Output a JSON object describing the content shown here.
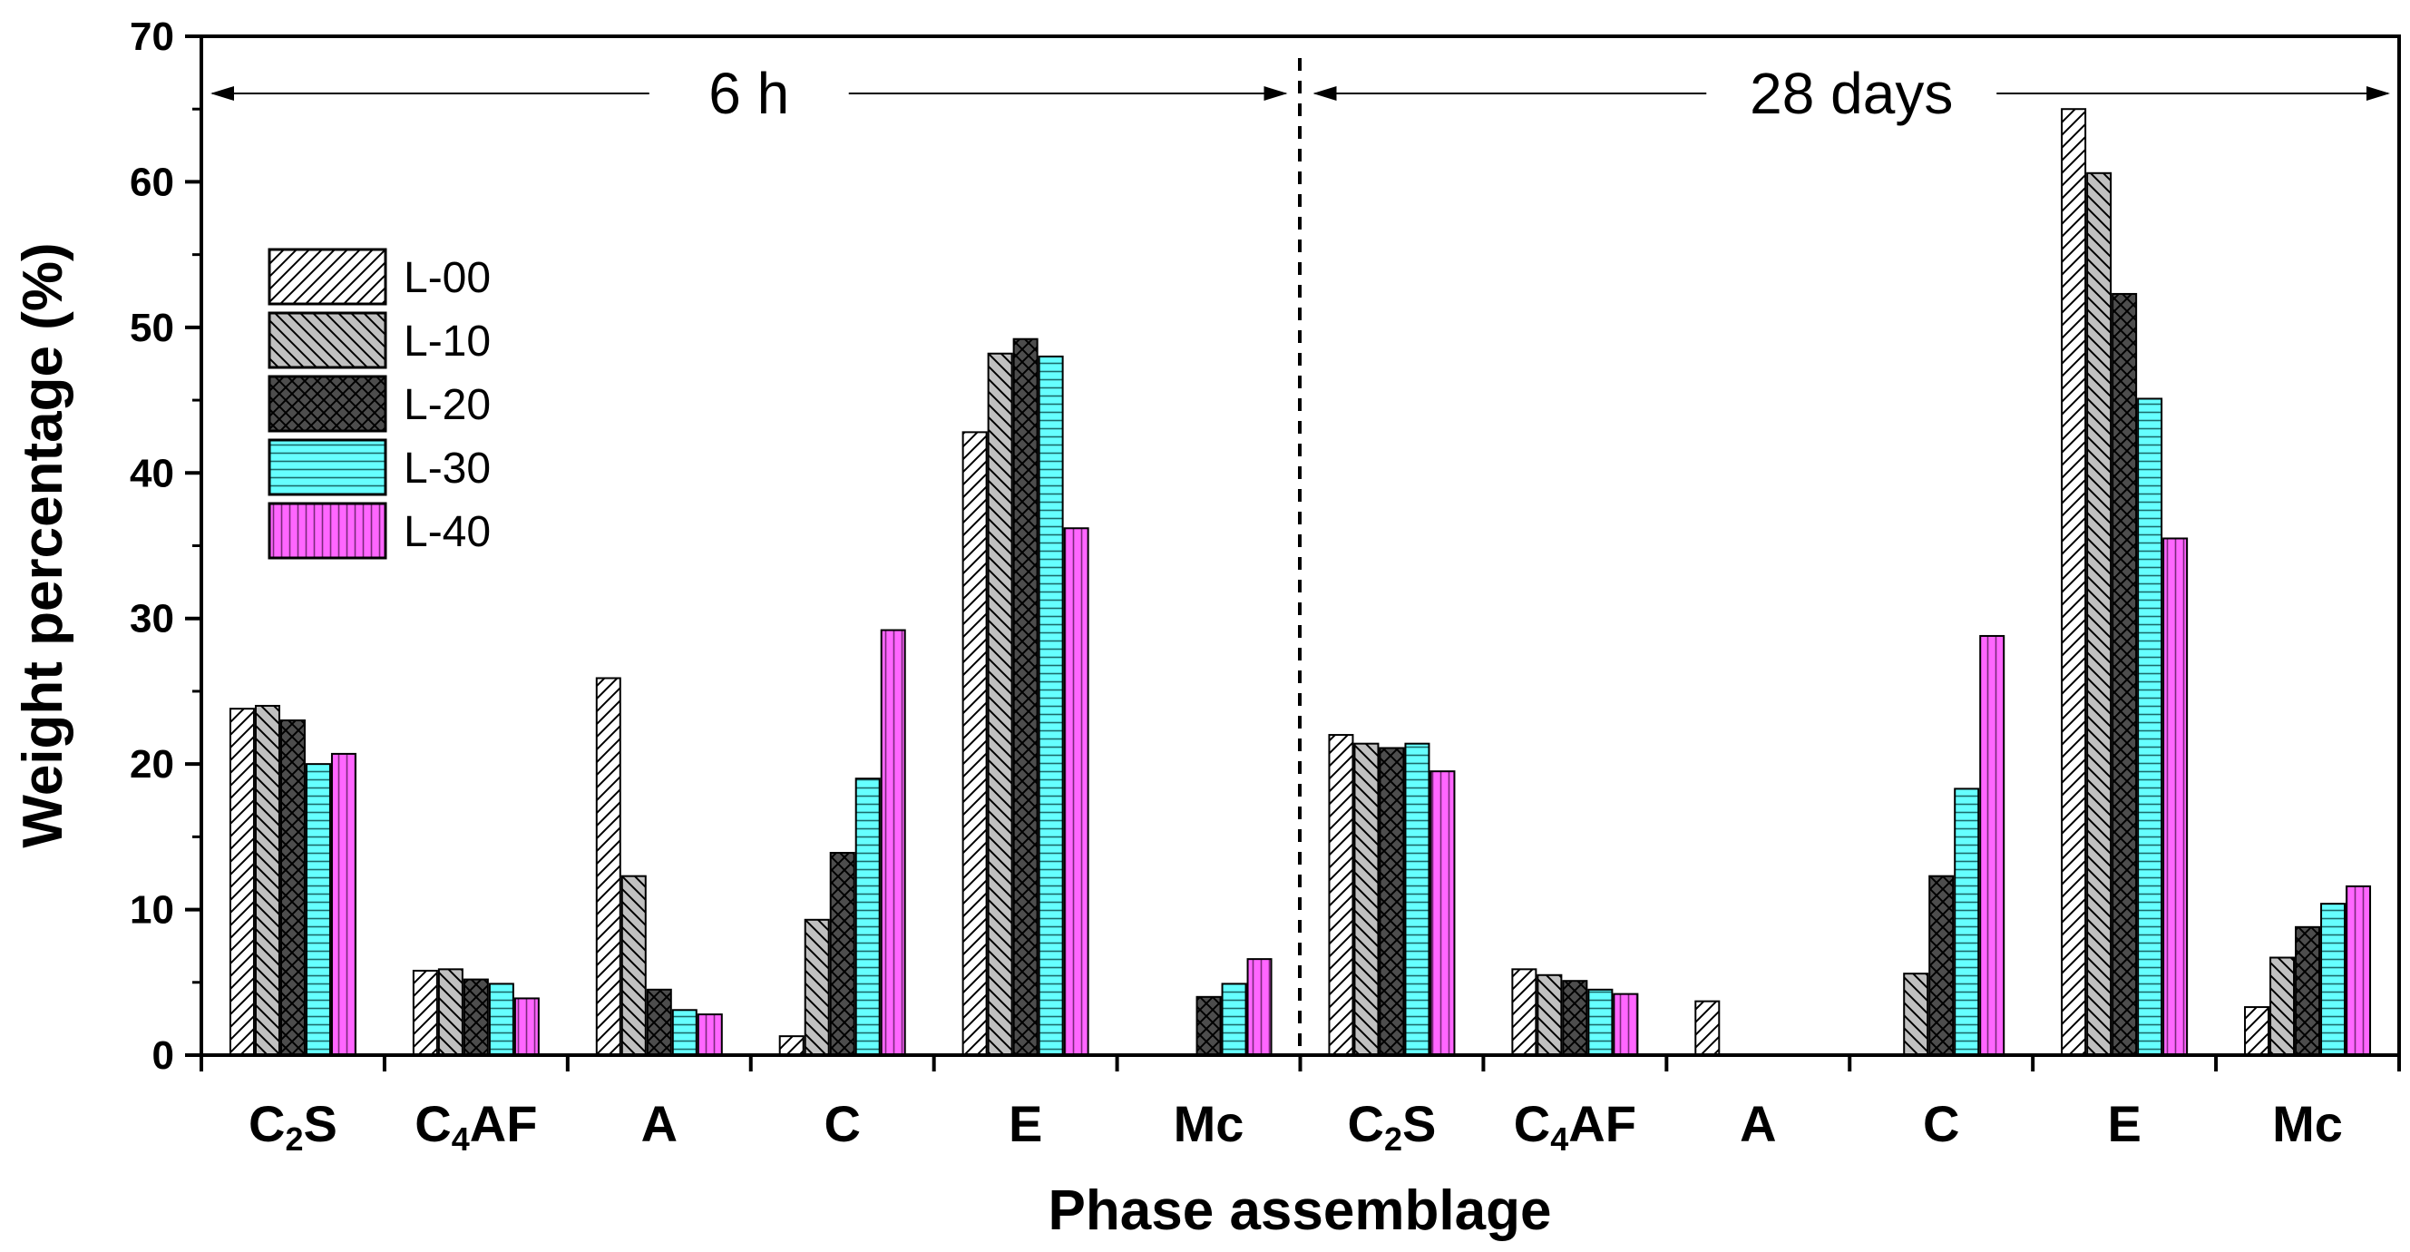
{
  "chart_data": {
    "type": "bar",
    "title": "",
    "xlabel": "Phase assemblage",
    "ylabel": "Weight percentage (%)",
    "ylim": [
      0,
      70
    ],
    "yticks": [
      "0",
      "10",
      "20",
      "30",
      "40",
      "50",
      "60",
      "70"
    ],
    "grid": false,
    "legend_position": "top-left",
    "periods": [
      {
        "label": "6 h",
        "start": 0,
        "end": 6
      },
      {
        "label": "28 days",
        "start": 6,
        "end": 12
      }
    ],
    "categories": [
      {
        "base": "C",
        "sub": "2",
        "rest": "S"
      },
      {
        "base": "C",
        "sub": "4",
        "rest": "AF"
      },
      {
        "base": "A",
        "sub": "",
        "rest": ""
      },
      {
        "base": "C",
        "sub": "",
        "rest": ""
      },
      {
        "base": "E",
        "sub": "",
        "rest": ""
      },
      {
        "base": "Mc",
        "sub": "",
        "rest": ""
      },
      {
        "base": "C",
        "sub": "2",
        "rest": "S"
      },
      {
        "base": "C",
        "sub": "4",
        "rest": "AF"
      },
      {
        "base": "A",
        "sub": "",
        "rest": ""
      },
      {
        "base": "C",
        "sub": "",
        "rest": ""
      },
      {
        "base": "E",
        "sub": "",
        "rest": ""
      },
      {
        "base": "Mc",
        "sub": "",
        "rest": ""
      }
    ],
    "series": [
      {
        "name": "L-00",
        "pattern": "diag-forward",
        "fill": "#ffffff",
        "values": [
          23.8,
          5.8,
          25.9,
          1.3,
          42.8,
          0,
          22.0,
          5.9,
          3.7,
          0,
          65.0,
          3.3
        ]
      },
      {
        "name": "L-10",
        "pattern": "diag-back",
        "fill": "#c0c0c0",
        "values": [
          24.0,
          5.9,
          12.3,
          9.3,
          48.2,
          0,
          21.4,
          5.5,
          0,
          5.6,
          60.6,
          6.7
        ]
      },
      {
        "name": "L-20",
        "pattern": "crosshatch",
        "fill": "#4d4d4d",
        "values": [
          23.0,
          5.2,
          4.5,
          13.9,
          49.2,
          4.0,
          21.1,
          5.1,
          0,
          12.3,
          52.3,
          8.8
        ]
      },
      {
        "name": "L-30",
        "pattern": "horizontal",
        "fill": "#66ffff",
        "values": [
          20.0,
          4.9,
          3.1,
          19.0,
          48.0,
          4.9,
          21.4,
          4.5,
          0,
          18.3,
          45.1,
          10.4
        ]
      },
      {
        "name": "L-40",
        "pattern": "vertical",
        "fill": "#ff66ff",
        "values": [
          20.7,
          3.9,
          2.8,
          29.2,
          36.2,
          6.6,
          19.5,
          4.2,
          0,
          28.8,
          35.5,
          11.6
        ]
      }
    ]
  }
}
